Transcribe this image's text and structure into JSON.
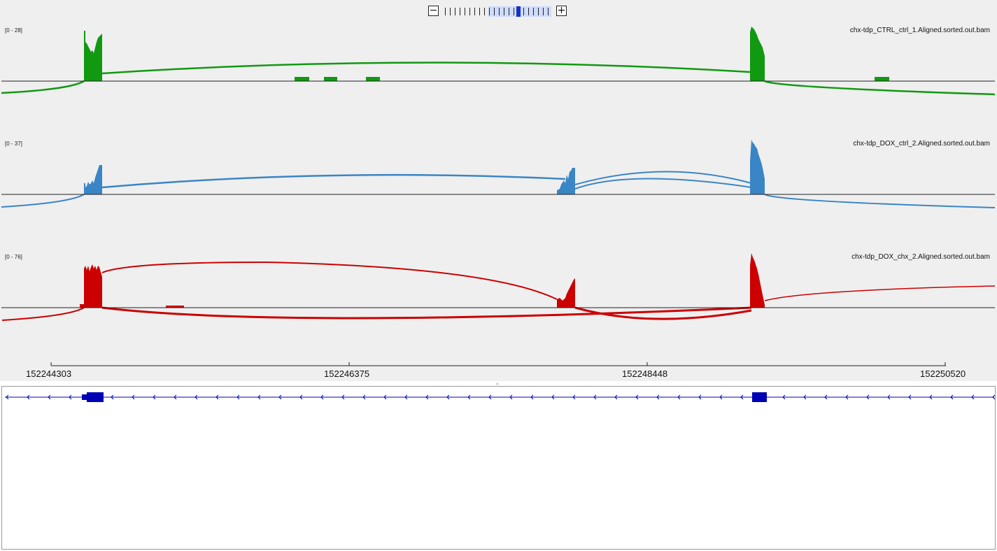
{
  "zoom": {
    "minus_label": "−",
    "plus_label": "+"
  },
  "tracks": [
    {
      "name": "chx-tdp_CTRL_ctrl_1.Aligned.sorted.out.bam",
      "range": "[0 - 28]",
      "color": "#119911"
    },
    {
      "name": "chx-tdp_DOX_ctrl_2.Aligned.sorted.out.bam",
      "range": "[0 - 37]",
      "color": "#3a85c5"
    },
    {
      "name": "chx-tdp_DOX_chx_2.Aligned.sorted.out.bam",
      "range": "[0 - 76]",
      "color": "#cc0000"
    }
  ],
  "ruler": {
    "labels": [
      "152244303",
      "152246375",
      "152248448",
      "152250520"
    ]
  },
  "gene": {
    "strand": "minus",
    "color": "#0000b4"
  }
}
